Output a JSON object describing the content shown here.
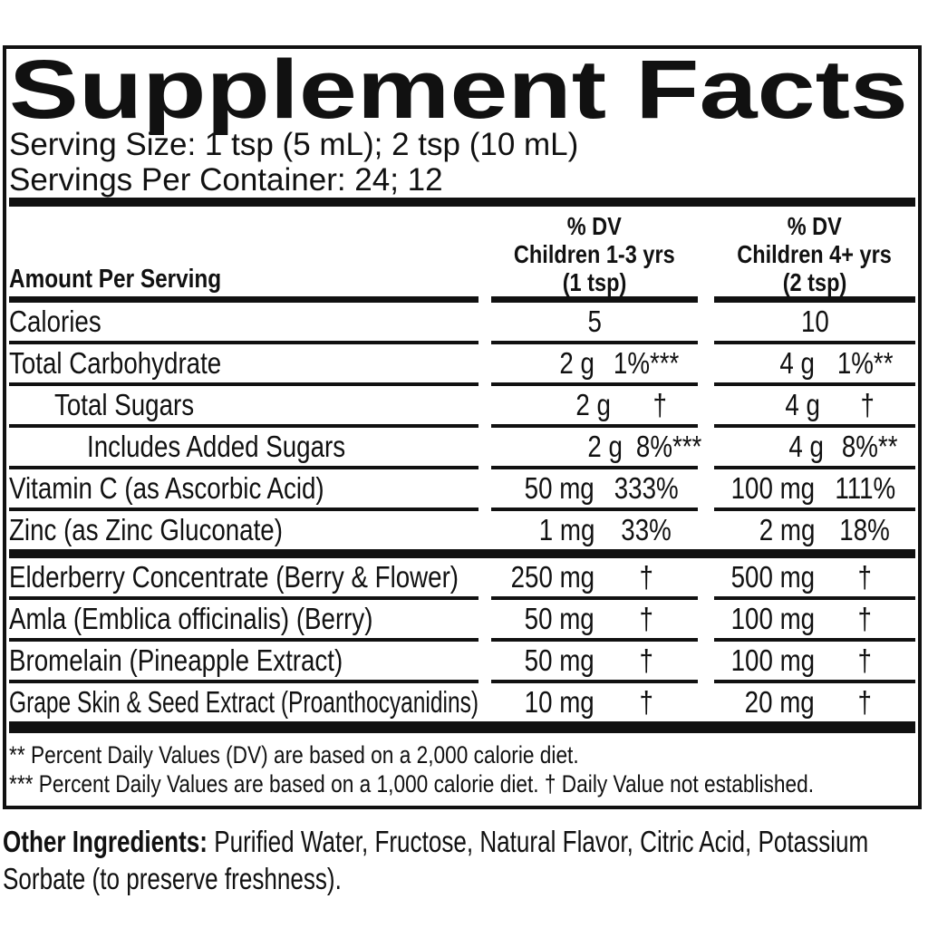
{
  "panel": {
    "title": "Supplement Facts",
    "serving_size": "Serving Size: 1 tsp (5 mL); 2 tsp (10 mL)",
    "servings_per_container": "Servings Per Container: 24; 12",
    "header": {
      "amount_label": "Amount Per Serving",
      "col1": {
        "dv": "% DV",
        "group": "Children 1-3 yrs",
        "dose": "(1 tsp)"
      },
      "col2": {
        "dv": "% DV",
        "group": "Children 4+ yrs",
        "dose": "(2 tsp)"
      }
    },
    "rows": [
      {
        "name": "Calories",
        "amount1": "5",
        "amount2": "10"
      },
      {
        "name": "Total Carbohydrate",
        "amount1": "2 g",
        "dv1": "1%***",
        "amount2": "4 g",
        "dv2": "1%**"
      },
      {
        "name": "Total Sugars",
        "amount1": "2 g",
        "dv1": "†",
        "amount2": "4 g",
        "dv2": "†"
      },
      {
        "name": "Includes Added Sugars",
        "amount1": "2 g",
        "dv1": "8%***",
        "amount2": "4 g",
        "dv2": "8%**"
      },
      {
        "name": "Vitamin C (as Ascorbic Acid)",
        "amount1": "50 mg",
        "dv1": "333%",
        "amount2": "100 mg",
        "dv2": "111%"
      },
      {
        "name": "Zinc (as Zinc Gluconate)",
        "amount1": "1 mg",
        "dv1": "33%",
        "amount2": "2 mg",
        "dv2": "18%"
      }
    ],
    "botanical_rows": [
      {
        "name": "Elderberry Concentrate (Berry & Flower)",
        "amount1": "250 mg",
        "dv1": "†",
        "amount2": "500 mg",
        "dv2": "†"
      },
      {
        "name": "Amla (Emblica officinalis) (Berry)",
        "amount1": "50 mg",
        "dv1": "†",
        "amount2": "100 mg",
        "dv2": "†"
      },
      {
        "name": "Bromelain (Pineapple Extract)",
        "amount1": "50 mg",
        "dv1": "†",
        "amount2": "100 mg",
        "dv2": "†"
      },
      {
        "name": "Grape Skin & Seed Extract (Proanthocyanidins)",
        "amount1": "10 mg",
        "dv1": "†",
        "amount2": "20 mg",
        "dv2": "†"
      }
    ],
    "footnotes": [
      "** Percent Daily Values (DV) are based on a 2,000 calorie diet.",
      "*** Percent Daily Values are based on a 1,000 calorie diet. † Daily Value not established."
    ]
  },
  "other_ingredients": {
    "label": "Other Ingredients:",
    "text": "Purified Water, Fructose, Natural Flavor, Citric Acid, Potassium Sorbate (to preserve freshness)."
  },
  "colors": {
    "text": "#111111",
    "background": "#ffffff"
  }
}
